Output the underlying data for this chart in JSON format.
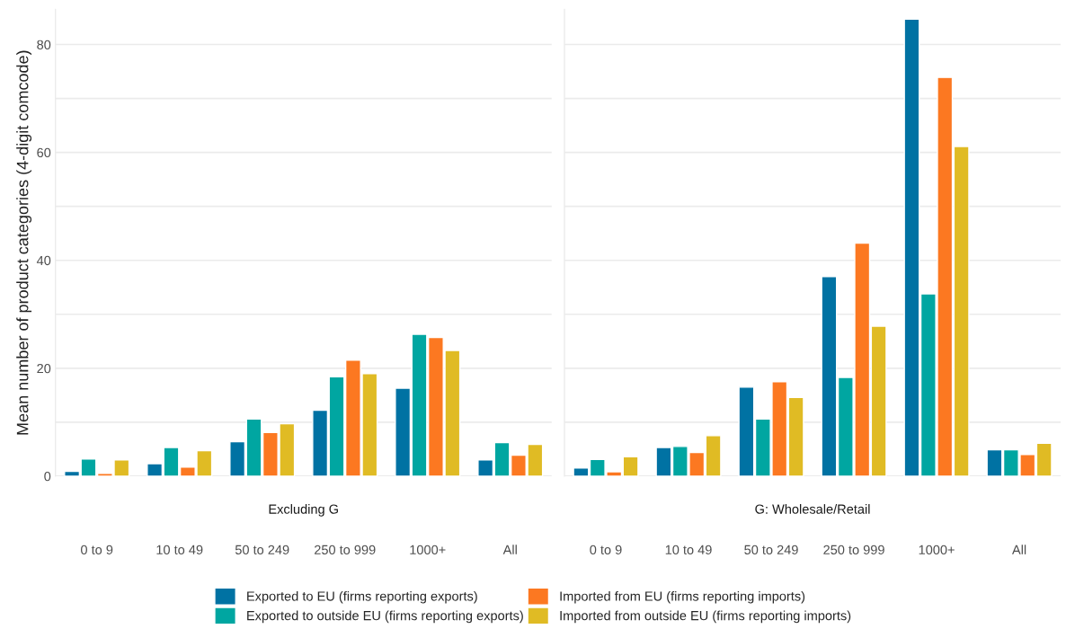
{
  "chart_data": [
    {
      "type": "bar",
      "title": "Excluding G",
      "ylabel": "Mean number of product categories (4-digit comcode)",
      "categories": [
        "0 to 9",
        "10 to 49",
        "50 to 249",
        "250 to 999",
        "1000+",
        "All"
      ],
      "series": [
        {
          "name": "Exported to EU (firms reporting exports)",
          "color": "#0072a3",
          "values": [
            0.9,
            2.3,
            6.4,
            12.2,
            16.3,
            3.0
          ]
        },
        {
          "name": "Exported to outside EU (firms reporting exports)",
          "color": "#00a6a1",
          "values": [
            3.2,
            5.3,
            10.6,
            18.4,
            26.3,
            6.2
          ]
        },
        {
          "name": "Imported from EU (firms reporting imports)",
          "color": "#fc7821",
          "values": [
            0.5,
            1.7,
            8.1,
            21.5,
            25.7,
            3.9
          ]
        },
        {
          "name": "Imported from outside EU (firms reporting imports)",
          "color": "#e0bb24",
          "values": [
            3.0,
            4.7,
            9.7,
            19.0,
            23.3,
            5.9
          ]
        }
      ],
      "ylim": [
        0,
        86.5
      ],
      "yticks": [
        0,
        20,
        40,
        60,
        80
      ],
      "grid": "y",
      "legend": "bottom"
    },
    {
      "type": "bar",
      "title": "G: Wholesale/Retail",
      "categories": [
        "0 to 9",
        "10 to 49",
        "50 to 249",
        "250 to 999",
        "1000+",
        "All"
      ],
      "series": [
        {
          "color": "#0072a3",
          "values": [
            1.5,
            5.3,
            16.5,
            37.0,
            84.7,
            4.9
          ]
        },
        {
          "color": "#00a6a1",
          "values": [
            3.1,
            5.5,
            10.6,
            18.3,
            33.8,
            4.9
          ]
        },
        {
          "color": "#fc7821",
          "values": [
            0.8,
            4.4,
            17.5,
            43.2,
            73.9,
            4.0
          ]
        },
        {
          "color": "#e0bb24",
          "values": [
            3.6,
            7.5,
            14.6,
            27.8,
            61.1,
            6.1
          ]
        }
      ],
      "ylim": [
        0,
        86.5
      ],
      "yticks": [
        0,
        20,
        40,
        60,
        80
      ],
      "grid": "y",
      "tick_labels": "x"
    }
  ]
}
